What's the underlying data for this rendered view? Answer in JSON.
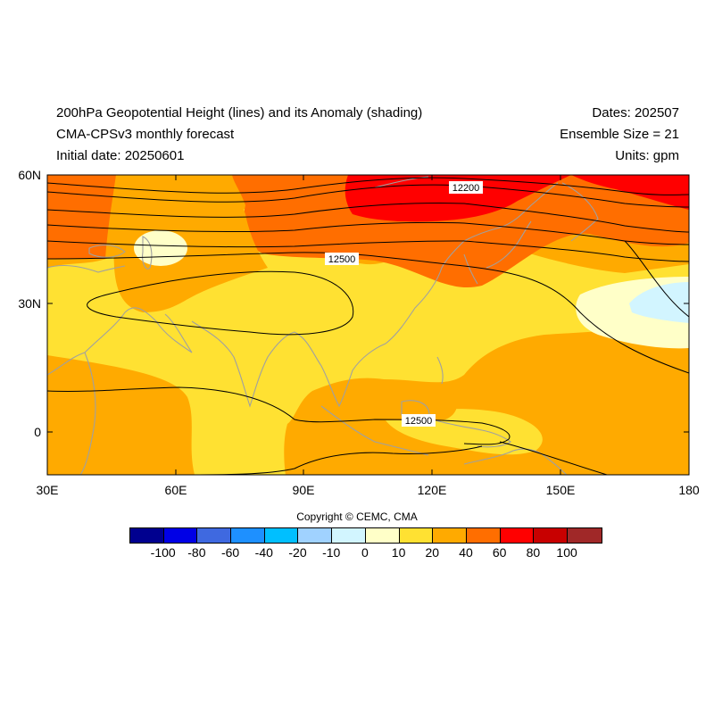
{
  "header": {
    "title": "200hPa Geopotential Height (lines) and its Anomaly (shading)",
    "model": "CMA-CPSv3 monthly forecast",
    "initial_date": "Initial date: 20250601",
    "dates": "Dates: 202507",
    "ensemble": "Ensemble Size = 21",
    "units": "Units: gpm"
  },
  "axes": {
    "lat_labels": [
      "60N",
      "30N",
      "0"
    ],
    "lon_labels": [
      "30E",
      "60E",
      "90E",
      "120E",
      "150E",
      "180"
    ]
  },
  "contour_labels": [
    "12200",
    "12500",
    "12500"
  ],
  "copyright": "Copyright © CEMC, CMA",
  "colorbar": {
    "colors": [
      "#00008f",
      "#0000e6",
      "#3f69e0",
      "#1e90ff",
      "#00bfff",
      "#a0d2ff",
      "#d2f5ff",
      "#ffffc8",
      "#ffe132",
      "#ffaa00",
      "#ff6e00",
      "#ff0000",
      "#c80000",
      "#a02828"
    ],
    "labels": [
      "-100",
      "-80",
      "-60",
      "-40",
      "-20",
      "-10",
      "0",
      "10",
      "20",
      "40",
      "60",
      "80",
      "100"
    ]
  },
  "legend_colors": {
    "anomaly_0_10": "#ffffc8",
    "anomaly_10_20": "#ffe132",
    "anomaly_20_40": "#ffaa00",
    "anomaly_40_60": "#ff6e00",
    "anomaly_60_80": "#ff0000",
    "anomaly_negative_small": "#d2f5ff",
    "coastline": "#a0a0a0",
    "contour": "#000000"
  }
}
